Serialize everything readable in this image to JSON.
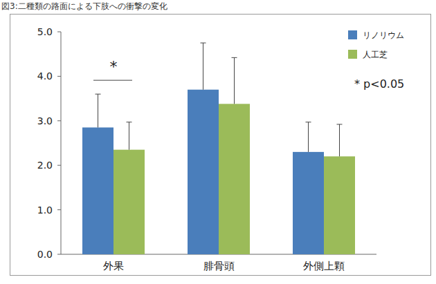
{
  "chart_data": {
    "type": "bar",
    "title": "図3:二種類の路面による下肢への衝撃の変化",
    "categories": [
      "外果",
      "腓骨頭",
      "外側上顆"
    ],
    "series": [
      {
        "name": "リノリウム",
        "color": "#4a7ebb",
        "values": [
          2.85,
          3.7,
          2.3
        ],
        "errors": [
          0.75,
          1.05,
          0.67
        ]
      },
      {
        "name": "人工芝",
        "color": "#9bbb59",
        "values": [
          2.35,
          3.38,
          2.2
        ],
        "errors": [
          0.62,
          1.04,
          0.72
        ]
      }
    ],
    "ylim": [
      0,
      5
    ],
    "yticks": [
      {
        "value": 0,
        "label": "0.0"
      },
      {
        "value": 1,
        "label": "1.0"
      },
      {
        "value": 2,
        "label": "2.0"
      },
      {
        "value": 3,
        "label": "3.0"
      },
      {
        "value": 4,
        "label": "4.0"
      },
      {
        "value": 5,
        "label": "5.0"
      }
    ],
    "grid": false,
    "legend": "top-right",
    "annotations": [
      {
        "text": "*",
        "category": "外果"
      },
      {
        "text": "* p<0.05"
      }
    ]
  }
}
